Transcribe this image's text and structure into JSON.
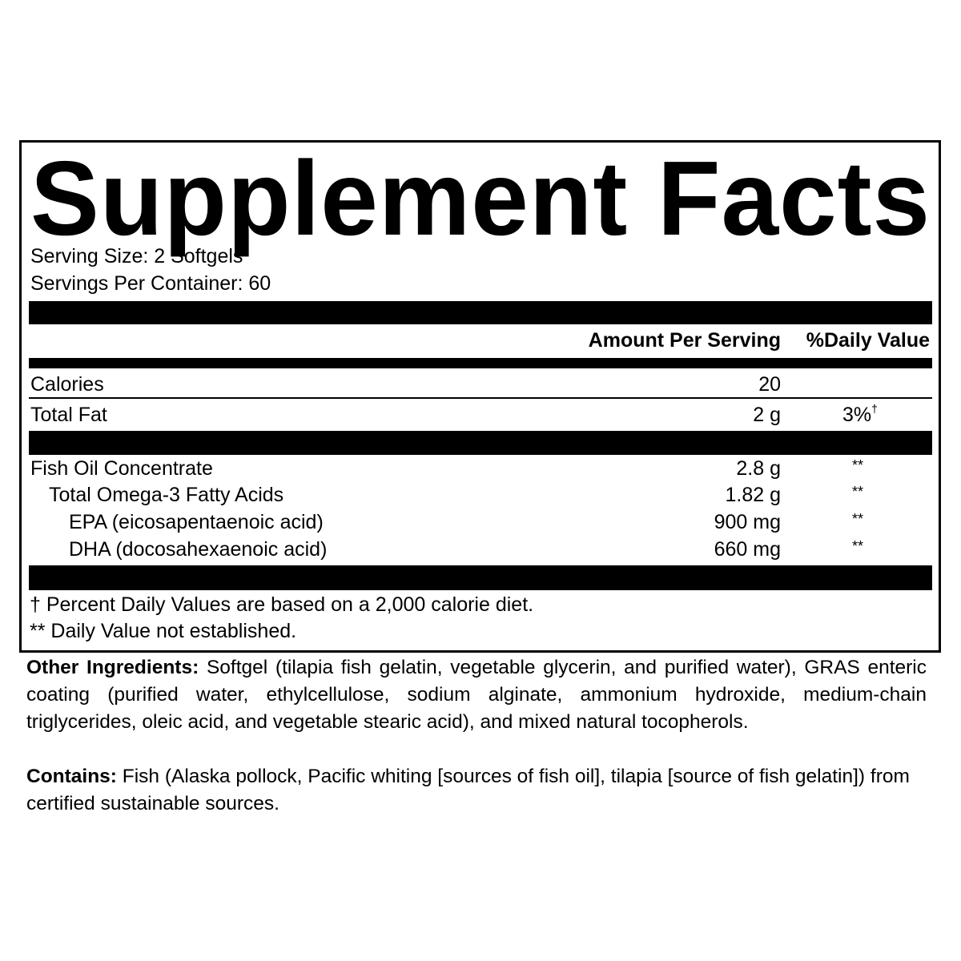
{
  "title": "Supplement Facts",
  "serving_size": "Serving Size: 2 Softgels",
  "servings_per_container": "Servings Per Container: 60",
  "header": {
    "amount": "Amount Per Serving",
    "daily_value": "%Daily Value"
  },
  "rows": [
    {
      "label": "Calories",
      "amount": "20",
      "dv": ""
    },
    {
      "label": "Total Fat",
      "amount": "2 g",
      "dv": "3%",
      "dv_mark": "†"
    },
    {
      "label": "Fish Oil Concentrate",
      "amount": "2.8 g",
      "dv": "**"
    },
    {
      "label": "Total Omega-3 Fatty Acids",
      "amount": "1.82 g",
      "dv": "**"
    },
    {
      "label": "EPA (eicosapentaenoic  acid)",
      "amount": "900 mg",
      "dv": "**"
    },
    {
      "label": "DHA (docosahexaenoic acid)",
      "amount": "660 mg",
      "dv": "**"
    }
  ],
  "footnotes": [
    "† Percent Daily Values are based on a 2,000 calorie diet.",
    "** Daily Value not established."
  ],
  "other_ingredients": {
    "label": "Other Ingredients:",
    "text": " Softgel (tilapia fish gelatin, vegetable glycerin, and purified water), GRAS enteric coating (purified water, ethylcellulose, sodium alginate, ammonium hydroxide, medium-chain triglycerides, oleic acid, and vegetable stearic acid), and mixed natural tocopherols."
  },
  "contains": {
    "label": "Contains:",
    "text": " Fish (Alaska pollock, Pacific whiting [sources of fish oil], tilapia [source of fish gelatin]) from certified sustainable sources."
  }
}
